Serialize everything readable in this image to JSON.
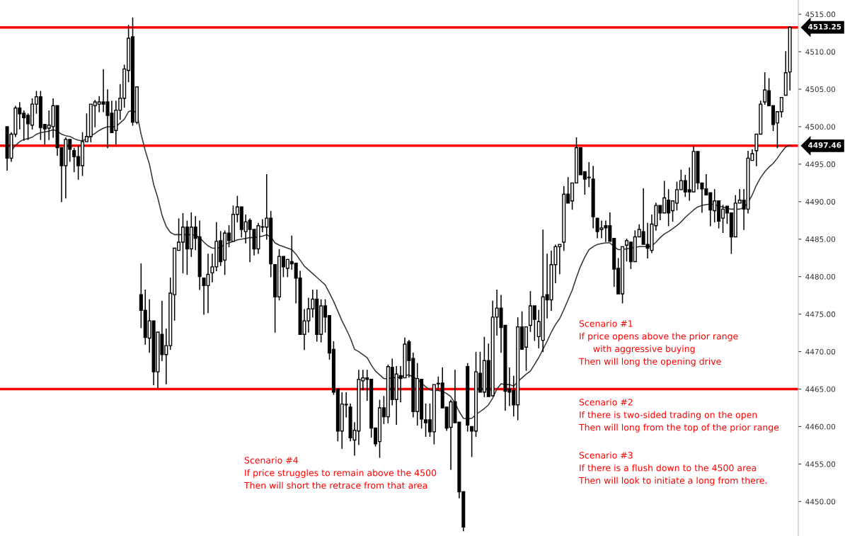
{
  "chart_data": {
    "type": "candlestick",
    "categories": [
      null,
      null,
      null,
      null,
      null,
      null,
      null,
      null,
      null,
      null,
      null,
      null,
      null,
      null,
      null,
      null,
      null,
      null,
      null,
      null,
      null,
      null,
      null,
      null,
      null,
      null,
      null,
      null,
      null,
      null,
      null,
      null,
      null,
      null,
      null,
      null,
      null,
      null,
      null,
      null,
      null,
      null,
      null,
      null,
      null,
      null,
      null,
      null,
      null,
      null,
      null,
      null,
      null,
      null,
      null,
      null,
      null,
      null,
      null,
      null,
      null,
      null,
      null,
      null,
      null,
      null,
      null,
      null,
      null,
      null,
      null,
      null,
      null,
      null,
      null,
      null,
      null,
      null,
      null,
      null,
      null,
      null,
      null,
      null,
      null,
      null,
      null,
      null,
      null,
      null,
      null,
      null,
      null,
      null,
      null,
      null,
      null,
      null,
      null,
      null,
      null,
      null,
      null,
      null,
      null,
      null,
      null,
      null,
      null,
      null,
      null,
      null,
      null,
      null,
      null,
      null,
      null,
      null,
      null,
      null,
      null,
      null,
      null,
      null,
      null,
      null,
      null,
      null,
      null,
      null,
      null,
      null,
      null,
      null,
      null,
      null,
      null,
      null,
      null,
      null,
      null,
      null,
      null,
      null,
      null,
      null,
      null,
      null,
      null,
      null,
      null,
      null,
      null,
      null,
      null,
      null,
      null,
      null,
      null,
      null,
      null,
      null,
      null,
      null,
      null,
      null,
      null,
      null,
      null,
      null,
      null,
      null,
      null,
      null,
      null,
      null,
      null,
      null,
      null,
      null,
      null,
      null,
      null,
      null,
      null,
      null,
      null,
      null
    ],
    "ohlc": [
      [
        4500.0,
        4500.0,
        4494.2,
        4495.8
      ],
      [
        4495.8,
        4499.2,
        4495.4,
        4499.0
      ],
      [
        4499.0,
        4502.7,
        4498.7,
        4502.5
      ],
      [
        4502.5,
        4503.2,
        4499.7,
        4501.7
      ],
      [
        4501.8,
        4502.1,
        4498.2,
        4501.2
      ],
      [
        4501.5,
        4501.7,
        4498.3,
        4500.4
      ],
      [
        4500.2,
        4503.7,
        4499.7,
        4503.0
      ],
      [
        4503.0,
        4504.7,
        4501.8,
        4504.0
      ],
      [
        4504.0,
        4504.7,
        4498.3,
        4499.9
      ],
      [
        4500.3,
        4500.3,
        4497.7,
        4499.7
      ],
      [
        4499.8,
        4502.1,
        4498.3,
        4500.2
      ],
      [
        4500.0,
        4503.7,
        4498.6,
        4502.8
      ],
      [
        4502.8,
        4502.8,
        4496.2,
        4497.2
      ],
      [
        4497.2,
        4497.2,
        4490.0,
        4494.8
      ],
      [
        4494.8,
        4498.5,
        4490.5,
        4498.3
      ],
      [
        4498.3,
        4498.3,
        4495.4,
        4497.0
      ],
      [
        4496.8,
        4497.1,
        4494.0,
        4496.0
      ],
      [
        4496.0,
        4497.4,
        4493.0,
        4494.8
      ],
      [
        4494.8,
        4499.2,
        4493.5,
        4498.0
      ],
      [
        4498.0,
        4501.7,
        4498.0,
        4498.7
      ],
      [
        4498.7,
        4503.0,
        4498.0,
        4503.0
      ],
      [
        4502.8,
        4503.5,
        4500.0,
        4503.3
      ],
      [
        4503.0,
        4504.0,
        4502.0,
        4503.3
      ],
      [
        4503.3,
        4507.6,
        4502.0,
        4503.0
      ],
      [
        4503.3,
        4504.9,
        4497.2,
        4501.5
      ],
      [
        4501.8,
        4503.4,
        4499.2,
        4499.2
      ],
      [
        4499.5,
        4503.4,
        4497.7,
        4502.2
      ],
      [
        4502.2,
        4505.6,
        4501.0,
        4503.8
      ],
      [
        4503.8,
        4508.2,
        4502.6,
        4507.7
      ],
      [
        4507.5,
        4513.5,
        4506.0,
        4511.8
      ],
      [
        4512.0,
        4514.5,
        4500.2,
        4500.6
      ],
      [
        4500.6,
        4505.3,
        4500.4,
        4505.3
      ],
      [
        4477.6,
        4481.7,
        4473.2,
        4475.5
      ],
      [
        4475.5,
        4478.2,
        4471.0,
        4471.9
      ],
      [
        4471.8,
        4476.9,
        4469.9,
        4474.1
      ],
      [
        4474.1,
        4474.1,
        4465.6,
        4467.3
      ],
      [
        4467.3,
        4472.6,
        4465.2,
        4472.6
      ],
      [
        4472.3,
        4476.7,
        4468.8,
        4469.6
      ],
      [
        4469.6,
        4473.0,
        4465.7,
        4470.8
      ],
      [
        4470.8,
        4479.8,
        4470.3,
        4477.8
      ],
      [
        4477.6,
        4483.8,
        4474.2,
        4483.8
      ],
      [
        4483.5,
        4487.7,
        4483.5,
        4484.6
      ],
      [
        4484.6,
        4488.4,
        4480.5,
        4486.6
      ],
      [
        4486.6,
        4487.4,
        4480.3,
        4483.7
      ],
      [
        4483.7,
        4488.5,
        4482.7,
        4486.6
      ],
      [
        4486.6,
        4488.0,
        4483.6,
        4485.1
      ],
      [
        4485.3,
        4487.4,
        4478.3,
        4480.0
      ],
      [
        4479.8,
        4479.8,
        4475.0,
        4478.8
      ],
      [
        4478.8,
        4483.0,
        4475.2,
        4480.3
      ],
      [
        4480.5,
        4483.0,
        4479.3,
        4481.3
      ],
      [
        4481.3,
        4487.2,
        4480.8,
        4484.7
      ],
      [
        4484.8,
        4486.0,
        4481.5,
        4482.0
      ],
      [
        4482.2,
        4486.1,
        4480.3,
        4485.8
      ],
      [
        4485.8,
        4486.8,
        4484.0,
        4484.8
      ],
      [
        4484.7,
        4489.4,
        4484.7,
        4488.3
      ],
      [
        4488.3,
        4490.7,
        4487.3,
        4489.3
      ],
      [
        4489.3,
        4489.3,
        4485.3,
        4486.3
      ],
      [
        4486.0,
        4488.2,
        4484.5,
        4487.3
      ],
      [
        4487.5,
        4487.7,
        4482.0,
        4486.3
      ],
      [
        4486.3,
        4486.3,
        4482.9,
        4483.7
      ],
      [
        4483.7,
        4487.1,
        4483.1,
        4486.8
      ],
      [
        4486.6,
        4487.6,
        4486.0,
        4486.6
      ],
      [
        4486.6,
        4493.6,
        4485.0,
        4487.8
      ],
      [
        4487.8,
        4488.7,
        4480.0,
        4481.7
      ],
      [
        4481.6,
        4481.6,
        4472.6,
        4477.3
      ],
      [
        4477.3,
        4483.6,
        4476.9,
        4482.7
      ],
      [
        4482.7,
        4482.7,
        4480.0,
        4481.3
      ],
      [
        4481.1,
        4482.3,
        4480.0,
        4482.3
      ],
      [
        4482.0,
        4485.4,
        4481.0,
        4481.7
      ],
      [
        4481.8,
        4481.8,
        4476.5,
        4479.8
      ],
      [
        4479.8,
        4480.7,
        4472.3,
        4472.3
      ],
      [
        4472.3,
        4475.6,
        4470.3,
        4474.1
      ],
      [
        4474.1,
        4477.1,
        4472.6,
        4475.7
      ],
      [
        4475.7,
        4478.2,
        4474.6,
        4477.0
      ],
      [
        4477.0,
        4478.2,
        4471.4,
        4472.3
      ],
      [
        4472.3,
        4476.9,
        4471.3,
        4476.1
      ],
      [
        4476.1,
        4476.9,
        4472.6,
        4474.6
      ],
      [
        4474.8,
        4474.8,
        4469.0,
        4469.8
      ],
      [
        4470.3,
        4471.3,
        4464.3,
        4464.6
      ],
      [
        4465.0,
        4465.0,
        4458.1,
        4459.4
      ],
      [
        4459.4,
        4464.5,
        4457.1,
        4463.0
      ],
      [
        4462.9,
        4464.5,
        4461.3,
        4462.9
      ],
      [
        4462.6,
        4463.0,
        4458.1,
        4458.5
      ],
      [
        4458.2,
        4460.5,
        4456.2,
        4459.5
      ],
      [
        4459.4,
        4467.5,
        4457.6,
        4466.3
      ],
      [
        4466.1,
        4467.5,
        4464.9,
        4466.5
      ],
      [
        4466.5,
        4467.5,
        4463.5,
        4466.3
      ],
      [
        4466.3,
        4466.3,
        4458.6,
        4459.8
      ],
      [
        4459.8,
        4459.8,
        4457.4,
        4457.7
      ],
      [
        4458.0,
        4463.5,
        4455.9,
        4462.5
      ],
      [
        4462.5,
        4464.0,
        4460.4,
        4461.3
      ],
      [
        4461.3,
        4468.2,
        4460.5,
        4468.0
      ],
      [
        4467.9,
        4469.0,
        4462.9,
        4463.6
      ],
      [
        4463.6,
        4468.0,
        4460.3,
        4467.0
      ],
      [
        4466.8,
        4468.0,
        4463.3,
        4466.4
      ],
      [
        4466.5,
        4471.8,
        4466.5,
        4471.0
      ],
      [
        4471.3,
        4471.5,
        4466.6,
        4468.8
      ],
      [
        4469.1,
        4469.8,
        4461.3,
        4462.0
      ],
      [
        4462.0,
        4468.4,
        4460.2,
        4466.4
      ],
      [
        4466.3,
        4466.3,
        4459.8,
        4461.0
      ],
      [
        4460.9,
        4463.0,
        4458.7,
        4460.5
      ],
      [
        4460.9,
        4463.0,
        4458.7,
        4459.3
      ],
      [
        4459.3,
        4465.6,
        4457.7,
        4465.6
      ],
      [
        4465.7,
        4466.6,
        4464.9,
        4465.7
      ],
      [
        4465.8,
        4467.8,
        4462.5,
        4462.5
      ],
      [
        4462.6,
        4462.6,
        4459.5,
        4459.8
      ],
      [
        4459.9,
        4463.5,
        4454.3,
        4463.3
      ],
      [
        4463.3,
        4467.5,
        4460.5,
        4460.5
      ],
      [
        4460.6,
        4460.6,
        4450.5,
        4451.3
      ],
      [
        4451.3,
        4451.3,
        4446.1,
        4446.6
      ],
      [
        4468.0,
        4468.4,
        4459.4,
        4460.2
      ],
      [
        4460.0,
        4460.0,
        4456.0,
        4459.4
      ],
      [
        4459.4,
        4469.9,
        4458.7,
        4467.3
      ],
      [
        4467.1,
        4469.9,
        4464.6,
        4464.6
      ],
      [
        4464.6,
        4471.9,
        4464.0,
        4468.8
      ],
      [
        4468.8,
        4471.0,
        4464.0,
        4464.0
      ],
      [
        4464.1,
        4476.7,
        4464.1,
        4474.6
      ],
      [
        4474.6,
        4478.2,
        4472.2,
        4475.8
      ],
      [
        4475.8,
        4477.5,
        4469.9,
        4473.2
      ],
      [
        4473.5,
        4473.5,
        4462.2,
        4464.7
      ],
      [
        4465.0,
        4467.8,
        4462.8,
        4464.6
      ],
      [
        4464.8,
        4466.7,
        4461.4,
        4462.9
      ],
      [
        4462.9,
        4474.5,
        4460.9,
        4473.3
      ],
      [
        4473.3,
        4475.3,
        4470.3,
        4470.3
      ],
      [
        4470.6,
        4473.3,
        4467.5,
        4473.3
      ],
      [
        4473.5,
        4478.0,
        4472.7,
        4476.1
      ],
      [
        4476.1,
        4476.1,
        4471.5,
        4474.3
      ],
      [
        4472.0,
        4475.5,
        4470.5,
        4474.0
      ],
      [
        4471.5,
        4486.2,
        4470.0,
        4477.3
      ],
      [
        4477.6,
        4483.0,
        4474.5,
        4476.9
      ],
      [
        4476.9,
        4483.4,
        4475.5,
        4481.6
      ],
      [
        4481.6,
        4484.2,
        4479.2,
        4484.0
      ],
      [
        4484.0,
        4484.3,
        4480.4,
        4484.3
      ],
      [
        4484.6,
        4492.0,
        4483.5,
        4491.0
      ],
      [
        4491.0,
        4493.2,
        4489.8,
        4489.8
      ],
      [
        4490.1,
        4492.5,
        4489.0,
        4492.5
      ],
      [
        4492.5,
        4498.5,
        4492.5,
        4497.2
      ],
      [
        4497.2,
        4497.2,
        4493.6,
        4493.6
      ],
      [
        4494.0,
        4494.0,
        4491.0,
        4493.0
      ],
      [
        4493.2,
        4495.2,
        4492.0,
        4493.2
      ],
      [
        4493.0,
        4494.7,
        4486.5,
        4488.0
      ],
      [
        4487.8,
        4487.8,
        4485.2,
        4486.0
      ],
      [
        4486.3,
        4487.4,
        4485.2,
        4486.5
      ],
      [
        4486.8,
        4487.4,
        4484.7,
        4486.5
      ],
      [
        4486.8,
        4488.5,
        4484.7,
        4484.7
      ],
      [
        4485.1,
        4485.1,
        4478.7,
        4481.0
      ],
      [
        4481.1,
        4482.4,
        4477.7,
        4477.7
      ],
      [
        4477.7,
        4484.0,
        4476.5,
        4484.0
      ],
      [
        4484.2,
        4485.0,
        4482.1,
        4484.8
      ],
      [
        4484.6,
        4484.6,
        4481.1,
        4482.0
      ],
      [
        4482.0,
        4486.1,
        4482.0,
        4485.3
      ],
      [
        4485.3,
        4486.9,
        4485.3,
        4486.3
      ],
      [
        4486.0,
        4491.7,
        4484.3,
        4484.3
      ],
      [
        4484.3,
        4487.1,
        4482.5,
        4483.8
      ],
      [
        4483.5,
        4488.2,
        4483.2,
        4487.0
      ],
      [
        4486.8,
        4489.8,
        4486.2,
        4489.5
      ],
      [
        4489.5,
        4489.5,
        4487.6,
        4488.5
      ],
      [
        4488.5,
        4492.7,
        4488.5,
        4490.5
      ],
      [
        4490.2,
        4491.6,
        4486.8,
        4488.5
      ],
      [
        4488.8,
        4490.1,
        4487.4,
        4490.1
      ],
      [
        4489.8,
        4492.6,
        4488.9,
        4491.6
      ],
      [
        4491.6,
        4494.2,
        4491.6,
        4492.8
      ],
      [
        4492.8,
        4493.5,
        4490.7,
        4491.3
      ],
      [
        4491.6,
        4494.5,
        4490.2,
        4491.3
      ],
      [
        4491.3,
        4497.3,
        4491.3,
        4496.7
      ],
      [
        4496.7,
        4496.7,
        4491.7,
        4492.5
      ],
      [
        4492.5,
        4492.5,
        4488.6,
        4491.7
      ],
      [
        4491.7,
        4493.6,
        4490.9,
        4490.9
      ],
      [
        4491.2,
        4491.2,
        4486.8,
        4488.9
      ],
      [
        4488.8,
        4491.6,
        4487.3,
        4490.1
      ],
      [
        4490.1,
        4490.1,
        4486.5,
        4487.4
      ],
      [
        4487.8,
        4489.5,
        4485.9,
        4489.0
      ],
      [
        4489.4,
        4489.4,
        4487.1,
        4488.5
      ],
      [
        4488.5,
        4488.5,
        4483.1,
        4485.3
      ],
      [
        4485.3,
        4490.8,
        4485.3,
        4489.8
      ],
      [
        4489.8,
        4491.6,
        4489.8,
        4490.2
      ],
      [
        4490.2,
        4491.6,
        4486.3,
        4489.0
      ],
      [
        4489.0,
        4496.7,
        4488.5,
        4495.8
      ],
      [
        4495.5,
        4496.9,
        4495.5,
        4496.4
      ],
      [
        4496.8,
        4499.0,
        4494.8,
        4499.0
      ],
      [
        4499.0,
        4503.4,
        4499.0,
        4503.0
      ],
      [
        4503.3,
        4507.2,
        4503.0,
        4504.9
      ],
      [
        4504.8,
        4506.4,
        4502.8,
        4502.8
      ],
      [
        4502.8,
        4502.8,
        4499.5,
        4500.3
      ],
      [
        4500.5,
        4502.0,
        4497.2,
        4502.0
      ],
      [
        4502.0,
        4503.9,
        4501.3,
        4503.9
      ],
      [
        4504.2,
        4510.0,
        4504.2,
        4507.2
      ],
      [
        4507.3,
        4513.3,
        4504.9,
        4513.25
      ]
    ],
    "series": [
      {
        "type": "line",
        "color": "#333333",
        "values": [
          null,
          4496.8,
          4497.5,
          4498.0,
          4498.3,
          4498.4,
          4498.6,
          4499.0,
          4499.2,
          4499.3,
          4499.4,
          4499.6,
          4499.4,
          4499.0,
          4498.8,
          4498.7,
          4498.4,
          4498.2,
          4498.1,
          4498.4,
          4498.8,
          4499.1,
          4499.5,
          4499.8,
          4500.0,
          4500.0,
          4500.0,
          4500.5,
          4501.0,
          4502.0,
          4502.2,
          4501.8,
          4499.0,
          4496.8,
          4495.0,
          4492.3,
          4490.5,
          4488.2,
          4486.7,
          4485.9,
          4485.6,
          4485.6,
          4485.6,
          4485.6,
          4485.6,
          4485.5,
          4485.2,
          4484.6,
          4484.1,
          4483.8,
          4483.8,
          4483.9,
          4484.3,
          4484.5,
          4484.7,
          4484.9,
          4485.0,
          4485.1,
          4485.2,
          4485.2,
          4485.3,
          4485.4,
          4485.6,
          4485.3,
          4484.5,
          4484.2,
          4484.0,
          4483.8,
          4483.6,
          4483.0,
          4482.2,
          4481.4,
          4480.9,
          4480.4,
          4479.9,
          4479.4,
          4478.9,
          4477.8,
          4476.7,
          4475.4,
          4474.1,
          4473.0,
          4471.8,
          4470.3,
          4470.0,
          4469.6,
          4469.2,
          4468.2,
          4467.4,
          4466.9,
          4466.4,
          4466.4,
          4466.5,
          4466.5,
          4466.6,
          4466.8,
          4466.9,
          4466.6,
          4466.3,
          4465.8,
          4465.3,
          4464.9,
          4464.8,
          4464.8,
          4464.7,
          4464.4,
          4464.0,
          4463.1,
          4462.0,
          4461.1,
          4461.0,
          4461.1,
          4461.6,
          4462.0,
          4462.4,
          4462.9,
          4463.8,
          4465.0,
          4465.7,
          4465.6,
          4465.6,
          4465.4,
          4466.0,
          4466.5,
          4467.0,
          4467.4,
          4468.3,
          4469.2,
          4470.3,
          4471.4,
          4472.6,
          4473.6,
          4474.4,
          4475.6,
          4476.9,
          4478.2,
          4479.9,
          4481.4,
          4482.6,
          4483.6,
          4484.0,
          4484.3,
          4484.4,
          4484.5,
          4484.5,
          4484.0,
          4483.6,
          4483.6,
          4483.7,
          4483.8,
          4483.9,
          4484.0,
          4484.0,
          4484.0,
          4484.1,
          4484.6,
          4485.2,
          4485.7,
          4486.0,
          4486.4,
          4486.8,
          4487.3,
          4487.9,
          4488.4,
          4488.9,
          4489.3,
          4489.5,
          4489.6,
          4489.7,
          4489.6,
          4489.4,
          4489.3,
          4489.1,
          4489.0,
          4489.0,
          4489.0,
          4489.2,
          4489.9,
          4490.9,
          4492.2,
          4493.2,
          4494.0,
          4494.6,
          4495.1,
          4495.8,
          4496.6,
          4497.3,
          4497.5
        ]
      }
    ],
    "ylim": [
      4445.4,
      4516.9
    ],
    "yticks": [
      {
        "value": 4450,
        "label": "4450.00"
      },
      {
        "value": 4455,
        "label": "4455.00"
      },
      {
        "value": 4460,
        "label": "4460.00"
      },
      {
        "value": 4465,
        "label": "4465.00"
      },
      {
        "value": 4470,
        "label": "4470.00"
      },
      {
        "value": 4475,
        "label": "4475.00"
      },
      {
        "value": 4480,
        "label": "4480.00"
      },
      {
        "value": 4485,
        "label": "4485.00"
      },
      {
        "value": 4490,
        "label": "4490.00"
      },
      {
        "value": 4495,
        "label": "4495.00"
      },
      {
        "value": 4500,
        "label": "4500.00"
      },
      {
        "value": 4505,
        "label": "4505.00"
      },
      {
        "value": 4510,
        "label": "4510.00"
      },
      {
        "value": 4515,
        "label": "4515.00"
      }
    ],
    "ref_lines": [
      {
        "axis": "y",
        "value": 4513.25,
        "label": "4513.25",
        "color": "#ff0000"
      },
      {
        "axis": "y",
        "value": 4497.46,
        "label": "4497.46",
        "color": "#ff0000"
      },
      {
        "axis": "y",
        "value": 4465,
        "color": "#ff0000"
      }
    ],
    "annotations": [
      "Scenario #1\nIf price opens above the prior range\n     with aggressive buying\nThen will long the opening drive",
      "Scenario #2\nIf there is two-sided trading on the open\nThen will long from the top of the prior range",
      "Scenario #3\nIf there is a flush down to the 4500 area\nThen will look to initiate a long from there.",
      "Scenario #4\nIf price struggles to remain above the 4500\nThen will short the retrace from that area"
    ],
    "grid": false,
    "legend": false
  }
}
